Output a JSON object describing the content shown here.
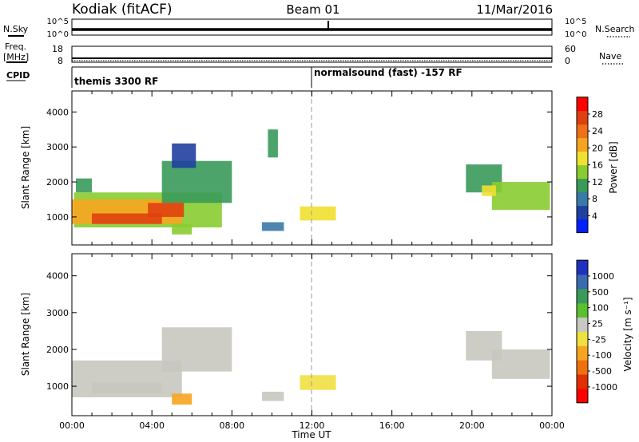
{
  "header": {
    "radar": "Kodiak (fitACF)",
    "beam": "Beam 01",
    "date": "11/Mar/2016"
  },
  "summary_panels": {
    "nsky": {
      "label": "N.Sky",
      "ticks": [
        "10^5",
        "10^0"
      ]
    },
    "nsearch": {
      "label": "N.Search",
      "ticks": [
        "10^5",
        "10^0"
      ]
    },
    "freq": {
      "label_line1": "Freq.",
      "label_line2": "[MHz]",
      "ticks": [
        "18",
        "8"
      ]
    },
    "nave": {
      "label": "Nave",
      "ticks": [
        "60",
        "0"
      ]
    },
    "cpid": {
      "label": "CPID",
      "segments": [
        "themis 3300 RF",
        "normalsound (fast) -157 RF"
      ],
      "switch_hour": 11.98
    }
  },
  "chart_data": [
    {
      "type": "heatmap",
      "ylabel": "Slant Range [km]",
      "xlabel": "",
      "xlim": [
        0,
        24
      ],
      "ylim": [
        200,
        4600
      ],
      "yticks": [
        "1000",
        "2000",
        "3000",
        "4000"
      ],
      "colorbar": {
        "label": "Power [dB]",
        "ticks": [
          "4",
          "8",
          "12",
          "16",
          "20",
          "24",
          "28"
        ],
        "range": [
          0,
          31
        ],
        "colors": [
          "#0020ff",
          "#2040a0",
          "#3a7aa8",
          "#3a9a5a",
          "#8acc30",
          "#f0e030",
          "#f7a520",
          "#ef7018",
          "#e04010",
          "#ff0000"
        ]
      },
      "cells": [
        {
          "t": [
            0.2,
            1.0
          ],
          "r": [
            1700,
            2100
          ],
          "v": 10
        },
        {
          "t": [
            0.1,
            7.5
          ],
          "r": [
            700,
            1700
          ],
          "v": 14
        },
        {
          "t": [
            0.0,
            5.5
          ],
          "r": [
            800,
            1500
          ],
          "v": 19
        },
        {
          "t": [
            1.0,
            4.5
          ],
          "r": [
            800,
            1100
          ],
          "v": 27
        },
        {
          "t": [
            3.8,
            5.6
          ],
          "r": [
            1000,
            1400
          ],
          "v": 25
        },
        {
          "t": [
            4.5,
            8.0
          ],
          "r": [
            1400,
            2600
          ],
          "v": 11
        },
        {
          "t": [
            5.0,
            6.2
          ],
          "r": [
            2400,
            3100
          ],
          "v": 6
        },
        {
          "t": [
            5.0,
            6.0
          ],
          "r": [
            500,
            800
          ],
          "v": 14
        },
        {
          "t": [
            9.5,
            10.6
          ],
          "r": [
            600,
            850
          ],
          "v": 8
        },
        {
          "t": [
            9.8,
            10.3
          ],
          "r": [
            2700,
            3500
          ],
          "v": 10
        },
        {
          "t": [
            11.4,
            13.2
          ],
          "r": [
            900,
            1300
          ],
          "v": 16
        },
        {
          "t": [
            19.7,
            21.5
          ],
          "r": [
            1700,
            2500
          ],
          "v": 10
        },
        {
          "t": [
            21.0,
            23.9
          ],
          "r": [
            1200,
            2000
          ],
          "v": 13
        },
        {
          "t": [
            20.5,
            21.2
          ],
          "r": [
            1600,
            1900
          ],
          "v": 18
        }
      ]
    },
    {
      "type": "heatmap",
      "ylabel": "Slant Range [km]",
      "xlabel": "Time UT",
      "xlim": [
        0,
        24
      ],
      "ylim": [
        200,
        4600
      ],
      "yticks": [
        "1000",
        "2000",
        "3000",
        "4000"
      ],
      "xticks": [
        "00:00",
        "04:00",
        "08:00",
        "12:00",
        "16:00",
        "20:00",
        "00:00"
      ],
      "colorbar": {
        "label": "Velocity [m s⁻¹]",
        "ticks": [
          "1000",
          "500",
          "100",
          "25",
          "-25",
          "-100",
          "-500",
          "-1000"
        ],
        "range": [
          -1200,
          1200
        ],
        "colors": [
          "#ff0000",
          "#e03000",
          "#f07010",
          "#f7a520",
          "#f0e040",
          "#c8c8c0",
          "#5ac030",
          "#3a9a5a",
          "#3a6ab0",
          "#2030c0"
        ]
      },
      "cells": [
        {
          "t": [
            0.0,
            5.5
          ],
          "r": [
            700,
            1700
          ],
          "v": 0
        },
        {
          "t": [
            1.0,
            4.5
          ],
          "r": [
            800,
            1100
          ],
          "v": 10
        },
        {
          "t": [
            4.5,
            8.0
          ],
          "r": [
            1400,
            2600
          ],
          "v": 0
        },
        {
          "t": [
            5.0,
            6.0
          ],
          "r": [
            500,
            800
          ],
          "v": -300
        },
        {
          "t": [
            9.5,
            10.6
          ],
          "r": [
            600,
            850
          ],
          "v": 0
        },
        {
          "t": [
            11.4,
            13.2
          ],
          "r": [
            900,
            1300
          ],
          "v": -200
        },
        {
          "t": [
            19.7,
            21.5
          ],
          "r": [
            1700,
            2500
          ],
          "v": 0
        },
        {
          "t": [
            21.0,
            23.9
          ],
          "r": [
            1200,
            2000
          ],
          "v": 0
        }
      ]
    }
  ]
}
